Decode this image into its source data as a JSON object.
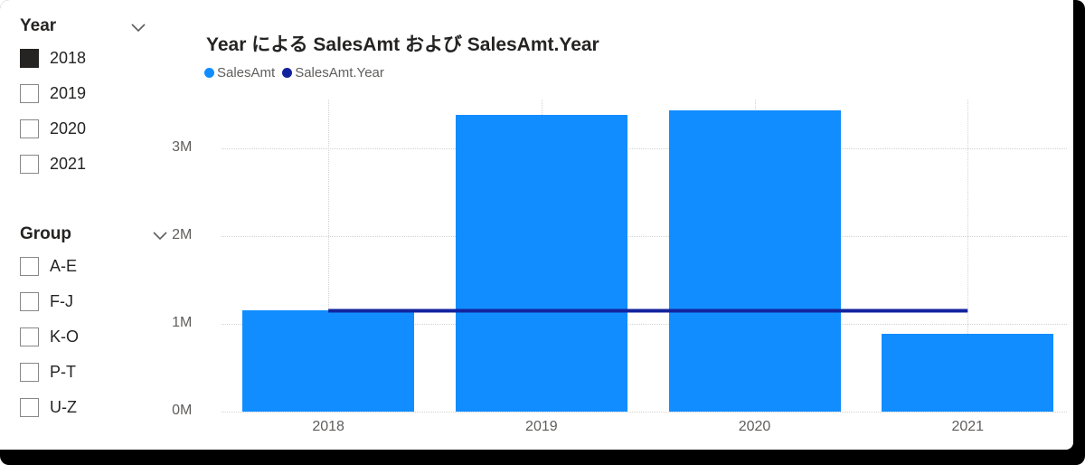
{
  "slicers": {
    "year": {
      "title": "Year",
      "items": [
        {
          "label": "2018",
          "checked": true
        },
        {
          "label": "2019",
          "checked": false
        },
        {
          "label": "2020",
          "checked": false
        },
        {
          "label": "2021",
          "checked": false
        }
      ]
    },
    "group": {
      "title": "Group",
      "items": [
        {
          "label": "A-E",
          "checked": false
        },
        {
          "label": "F-J",
          "checked": false
        },
        {
          "label": "K-O",
          "checked": false
        },
        {
          "label": "P-T",
          "checked": false
        },
        {
          "label": "U-Z",
          "checked": false
        }
      ]
    }
  },
  "chart": {
    "title": "Year による SalesAmt および SalesAmt.Year"
  },
  "chart_data": {
    "type": "bar",
    "title": "Year による SalesAmt および SalesAmt.Year",
    "categories": [
      "2018",
      "2019",
      "2020",
      "2021"
    ],
    "series": [
      {
        "name": "SalesAmt",
        "type": "bar",
        "color": "#118DFF",
        "values": [
          1150000,
          3380000,
          3430000,
          890000
        ]
      },
      {
        "name": "SalesAmt.Year",
        "type": "line",
        "color": "#12239E",
        "values": [
          1150000,
          1150000,
          1150000,
          1150000
        ]
      }
    ],
    "y_ticks": [
      {
        "label": "0M",
        "value": 0
      },
      {
        "label": "1M",
        "value": 1000000
      },
      {
        "label": "2M",
        "value": 2000000
      },
      {
        "label": "3M",
        "value": 3000000
      }
    ],
    "ylim": [
      0,
      3560000
    ],
    "grid": true,
    "legend_position": "top"
  },
  "colors": {
    "bar": "#118DFF",
    "line": "#12239E",
    "axis_text": "#605e5c",
    "title_text": "#252423"
  }
}
